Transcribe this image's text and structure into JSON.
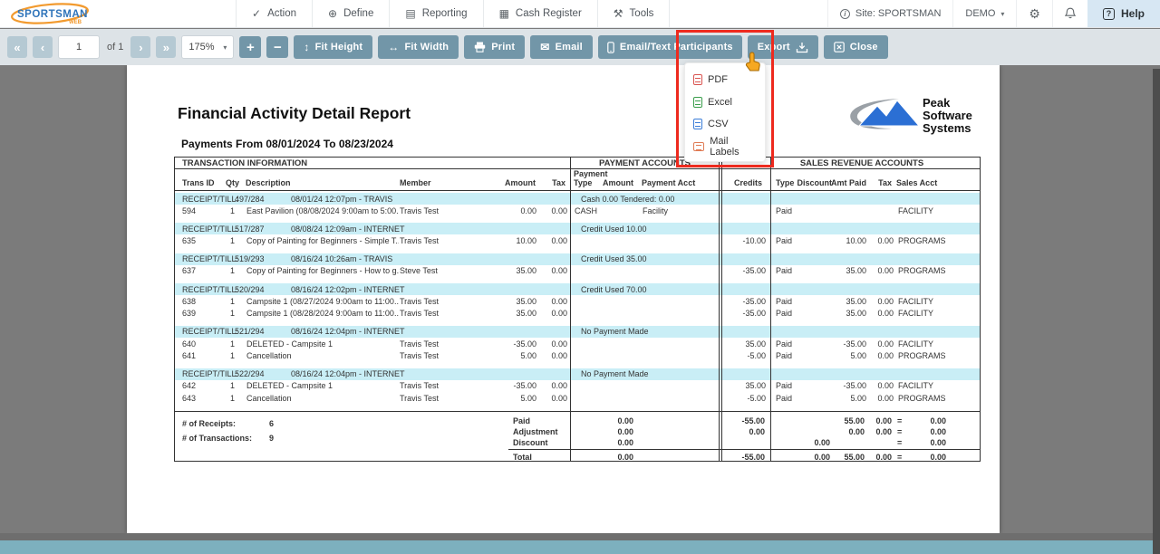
{
  "colors": {
    "toolbar_button": "#7296a8",
    "toolbar_bg": "#dde3e7",
    "viewer_bg": "#7b7b7b",
    "group_row_highlight": "#c9eef6",
    "annotation_red": "#ee2a1e",
    "help_bg": "#d7e7f3",
    "teal_bar": "#7db0be",
    "pdf_icon": "#d9534f",
    "excel_icon": "#3a9e4c",
    "csv_icon": "#3b7dd8",
    "mail_labels_icon": "#e07b54",
    "logo_blue": "#2f74ba",
    "logo_orange": "#f29a2e"
  },
  "topbar": {
    "logo": {
      "text": "SPORTSMAN",
      "sub": "WEB"
    },
    "menus": [
      {
        "label": "Action",
        "glyph": "✓"
      },
      {
        "label": "Define",
        "glyph": "⊕"
      },
      {
        "label": "Reporting",
        "glyph": "▤"
      },
      {
        "label": "Cash Register",
        "glyph": "▦"
      },
      {
        "label": "Tools",
        "glyph": "⚒"
      }
    ],
    "site_label": "Site: SPORTSMAN",
    "account_label": "DEMO",
    "help_label": "Help"
  },
  "toolbar": {
    "page_value": "1",
    "page_of": "of 1",
    "zoom_value": "175%",
    "first": "«",
    "prev": "‹",
    "next": "›",
    "last": "»",
    "plus": "+",
    "minus": "−",
    "fit_height": "Fit Height",
    "fit_height_glyph": "↕",
    "fit_width": "Fit Width",
    "fit_width_glyph": "↔",
    "print": "Print",
    "email": "Email",
    "email_glyph": "✉",
    "email_text": "Email/Text Participants",
    "export": "Export",
    "close": "Close"
  },
  "export_menu": {
    "items": [
      {
        "label": "PDF"
      },
      {
        "label": "Excel"
      },
      {
        "label": "CSV"
      },
      {
        "label": "Mail Labels"
      }
    ]
  },
  "report": {
    "title": "Financial Activity Detail Report",
    "subtitle": "Payments From 08/01/2024 To 08/23/2024",
    "vendor_logo": {
      "line1": "Peak",
      "line2": "Software",
      "line3": "Systems"
    },
    "table": {
      "section_headers": [
        "TRANSACTION INFORMATION",
        "PAYMENT ACCOUNTS",
        "SALES REVENUE ACCOUNTS"
      ],
      "column_headers": {
        "trans": "Trans ID",
        "qty": "Qty",
        "desc": "Description",
        "member": "Member",
        "amount": "Amount",
        "tax": "Tax",
        "ptype": "Payment\nType",
        "pamount": "Amount",
        "pacct": "Payment Acct",
        "credits": "Credits",
        "stype": "Type",
        "discount": "Discount",
        "amtpaid": "Amt Paid",
        "stax": "Tax",
        "sacct": "Sales Acct"
      },
      "receipt_label": "RECEIPT/TILL:",
      "groups": [
        {
          "receipt": "497/284",
          "datetime": "08/01/24 12:07pm - TRAVIS",
          "payment_note": "Cash 0.00  Tendered: 0.00",
          "rows": [
            {
              "trans": "594",
              "qty": "1",
              "desc": "East Pavilion (08/08/2024 9:00am to 5:00...",
              "member": "Travis Test",
              "amount": "0.00",
              "tax": "0.00",
              "ptype": "CASH",
              "pamount": "",
              "pacct": "Facility",
              "credits": "",
              "stype": "Paid",
              "discount": "",
              "amtpaid": "",
              "stax": "",
              "sacct": "FACILITY"
            }
          ]
        },
        {
          "receipt": "517/287",
          "datetime": "08/08/24 12:09am - INTERNET",
          "payment_note": "Credit Used 10.00",
          "rows": [
            {
              "trans": "635",
              "qty": "1",
              "desc": "Copy of Painting for Beginners - Simple T...",
              "member": "Travis Test",
              "amount": "10.00",
              "tax": "0.00",
              "ptype": "",
              "pamount": "",
              "pacct": "",
              "credits": "-10.00",
              "stype": "Paid",
              "discount": "",
              "amtpaid": "10.00",
              "stax": "0.00",
              "sacct": "PROGRAMS"
            }
          ]
        },
        {
          "receipt": "519/293",
          "datetime": "08/16/24 10:26am - TRAVIS",
          "payment_note": "Credit Used 35.00",
          "rows": [
            {
              "trans": "637",
              "qty": "1",
              "desc": "Copy of Painting for Beginners - How to g...",
              "member": "Steve Test",
              "amount": "35.00",
              "tax": "0.00",
              "ptype": "",
              "pamount": "",
              "pacct": "",
              "credits": "-35.00",
              "stype": "Paid",
              "discount": "",
              "amtpaid": "35.00",
              "stax": "0.00",
              "sacct": "PROGRAMS"
            }
          ]
        },
        {
          "receipt": "520/294",
          "datetime": "08/16/24 12:02pm - INTERNET",
          "payment_note": "Credit Used 70.00",
          "rows": [
            {
              "trans": "638",
              "qty": "1",
              "desc": "Campsite 1 (08/27/2024 9:00am to 11:00...",
              "member": "Travis Test",
              "amount": "35.00",
              "tax": "0.00",
              "ptype": "",
              "pamount": "",
              "pacct": "",
              "credits": "-35.00",
              "stype": "Paid",
              "discount": "",
              "amtpaid": "35.00",
              "stax": "0.00",
              "sacct": "FACILITY"
            },
            {
              "trans": "639",
              "qty": "1",
              "desc": "Campsite 1 (08/28/2024 9:00am to 11:00...",
              "member": "Travis Test",
              "amount": "35.00",
              "tax": "0.00",
              "ptype": "",
              "pamount": "",
              "pacct": "",
              "credits": "-35.00",
              "stype": "Paid",
              "discount": "",
              "amtpaid": "35.00",
              "stax": "0.00",
              "sacct": "FACILITY"
            }
          ]
        },
        {
          "receipt": "521/294",
          "datetime": "08/16/24 12:04pm - INTERNET",
          "payment_note": "No Payment Made",
          "rows": [
            {
              "trans": "640",
              "qty": "1",
              "desc": "DELETED - Campsite 1",
              "member": "Travis Test",
              "amount": "-35.00",
              "tax": "0.00",
              "ptype": "",
              "pamount": "",
              "pacct": "",
              "credits": "35.00",
              "stype": "Paid",
              "discount": "",
              "amtpaid": "-35.00",
              "stax": "0.00",
              "sacct": "FACILITY"
            },
            {
              "trans": "641",
              "qty": "1",
              "desc": "Cancellation",
              "member": "Travis Test",
              "amount": "5.00",
              "tax": "0.00",
              "ptype": "",
              "pamount": "",
              "pacct": "",
              "credits": "-5.00",
              "stype": "Paid",
              "discount": "",
              "amtpaid": "5.00",
              "stax": "0.00",
              "sacct": "PROGRAMS"
            }
          ]
        },
        {
          "receipt": "522/294",
          "datetime": "08/16/24 12:04pm - INTERNET",
          "payment_note": "No Payment Made",
          "rows": [
            {
              "trans": "642",
              "qty": "1",
              "desc": "DELETED - Campsite 1",
              "member": "Travis Test",
              "amount": "-35.00",
              "tax": "0.00",
              "ptype": "",
              "pamount": "",
              "pacct": "",
              "credits": "35.00",
              "stype": "Paid",
              "discount": "",
              "amtpaid": "-35.00",
              "stax": "0.00",
              "sacct": "FACILITY"
            },
            {
              "trans": "643",
              "qty": "1",
              "desc": "Cancellation",
              "member": "Travis Test",
              "amount": "5.00",
              "tax": "0.00",
              "ptype": "",
              "pamount": "",
              "pacct": "",
              "credits": "-5.00",
              "stype": "Paid",
              "discount": "",
              "amtpaid": "5.00",
              "stax": "0.00",
              "sacct": "PROGRAMS"
            }
          ]
        }
      ],
      "summary": {
        "receipts_label": "# of Receipts:",
        "receipts_value": "6",
        "transactions_label": "# of Transactions:",
        "transactions_value": "9",
        "rows": [
          {
            "label": "Paid",
            "pamount": "0.00",
            "credits": "-55.00",
            "discount": "",
            "amtpaid": "55.00",
            "tax": "0.00",
            "eq": "=",
            "net": "0.00"
          },
          {
            "label": "Adjustment",
            "pamount": "0.00",
            "credits": "0.00",
            "discount": "",
            "amtpaid": "0.00",
            "tax": "0.00",
            "eq": "=",
            "net": "0.00"
          },
          {
            "label": "Discount",
            "pamount": "0.00",
            "credits": "",
            "discount": "0.00",
            "amtpaid": "",
            "tax": "",
            "eq": "=",
            "net": "0.00"
          }
        ],
        "total": {
          "label": "Total",
          "pamount": "0.00",
          "credits": "-55.00",
          "discount": "0.00",
          "amtpaid": "55.00",
          "tax": "0.00",
          "eq": "=",
          "net": "0.00"
        }
      }
    }
  }
}
